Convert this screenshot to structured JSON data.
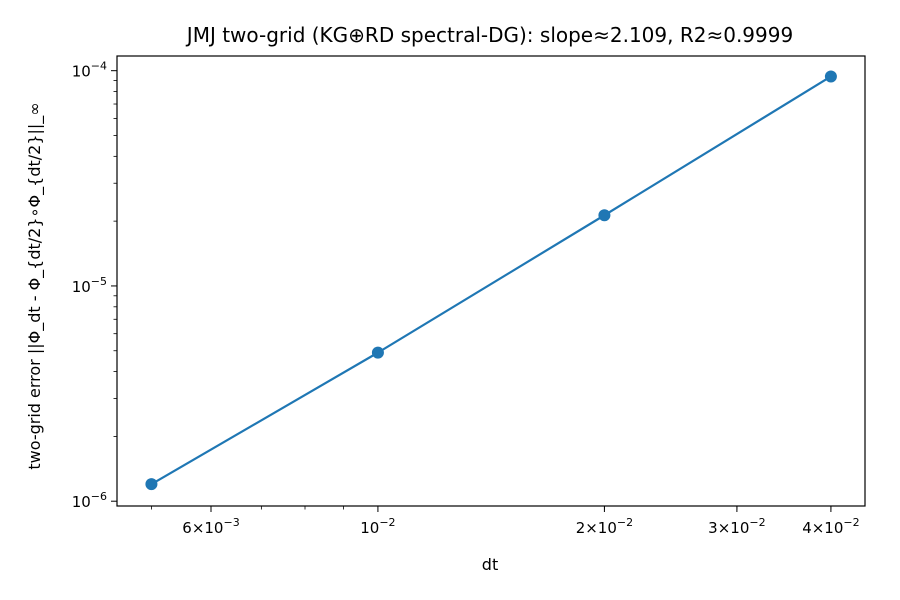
{
  "chart_data": {
    "type": "line",
    "title": "JMJ two-grid (KG⊕RD spectral-DG): slope≈2.109, R2≈0.9999",
    "xlabel": "dt",
    "ylabel": "two-grid error ||Φ_dt - Φ_{dt/2}∘Φ_{dt/2}||_∞",
    "xscale": "log",
    "yscale": "log",
    "xlim": [
      0.0045,
      0.0444
    ],
    "ylim": [
      9.5e-07,
      0.000117
    ],
    "grid": false,
    "line_color": "#1f77b4",
    "x_ticks": [
      {
        "value": 0.006,
        "base": "6×10",
        "exp": "−3"
      },
      {
        "value": 0.01,
        "base": "10",
        "exp": "−2"
      },
      {
        "value": 0.02,
        "base": "2×10",
        "exp": "−2"
      },
      {
        "value": 0.03,
        "base": "3×10",
        "exp": "−2"
      },
      {
        "value": 0.04,
        "base": "4×10",
        "exp": "−2"
      }
    ],
    "y_ticks": [
      {
        "value": 1e-06,
        "base": "10",
        "exp": "−6"
      },
      {
        "value": 1e-05,
        "base": "10",
        "exp": "−5"
      },
      {
        "value": 0.0001,
        "base": "10",
        "exp": "−4"
      }
    ],
    "series": [
      {
        "x": [
          0.005,
          0.01,
          0.02,
          0.04
        ],
        "y": [
          1.2e-06,
          4.9e-06,
          2.13e-05,
          9.4e-05
        ]
      }
    ]
  }
}
